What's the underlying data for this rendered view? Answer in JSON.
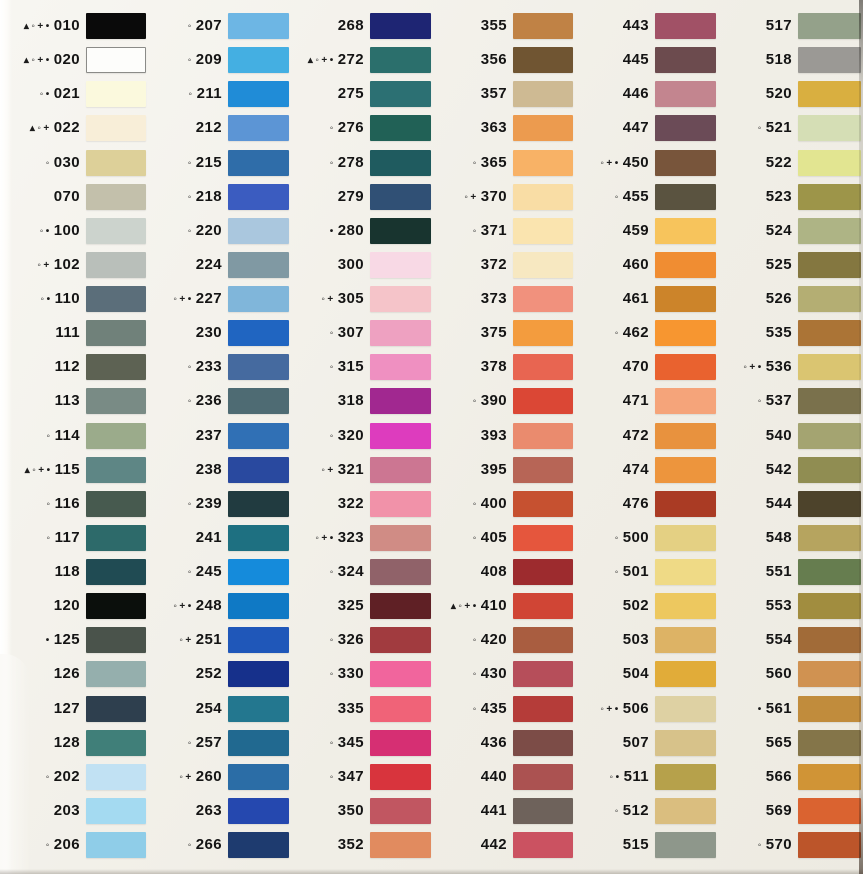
{
  "page": {
    "background": "#f3f1ea",
    "description": "Thread colour card with numbered swatches",
    "symbol_legend_chars": [
      "▴",
      "◦",
      "+",
      "•"
    ]
  },
  "columns": [
    {
      "items": [
        {
          "code": "010",
          "symbols": "▴◦+•",
          "color": "#0a0a0a"
        },
        {
          "code": "020",
          "symbols": "▴◦+•",
          "color": "#fdfdfb",
          "border": true
        },
        {
          "code": "021",
          "symbols": "◦•",
          "color": "#fbf9dd"
        },
        {
          "code": "022",
          "symbols": "▴◦+",
          "color": "#f8eed8"
        },
        {
          "code": "030",
          "symbols": "◦",
          "color": "#ddd099"
        },
        {
          "code": "070",
          "symbols": "",
          "color": "#c3c0ab"
        },
        {
          "code": "100",
          "symbols": "◦•",
          "color": "#ccd3cd"
        },
        {
          "code": "102",
          "symbols": "◦+",
          "color": "#b9bfba"
        },
        {
          "code": "110",
          "symbols": "◦•",
          "color": "#5b6e7a"
        },
        {
          "code": "111",
          "symbols": "",
          "color": "#70817a"
        },
        {
          "code": "112",
          "symbols": "",
          "color": "#5d6253"
        },
        {
          "code": "113",
          "symbols": "",
          "color": "#798b85"
        },
        {
          "code": "114",
          "symbols": "◦",
          "color": "#9bab8b"
        },
        {
          "code": "115",
          "symbols": "▴◦+•",
          "color": "#5e8685"
        },
        {
          "code": "116",
          "symbols": "◦",
          "color": "#475a4f"
        },
        {
          "code": "117",
          "symbols": "◦",
          "color": "#2d6a6a"
        },
        {
          "code": "118",
          "symbols": "",
          "color": "#204b53"
        },
        {
          "code": "120",
          "symbols": "",
          "color": "#0b0f0c"
        },
        {
          "code": "125",
          "symbols": "•",
          "color": "#4a534b"
        },
        {
          "code": "126",
          "symbols": "",
          "color": "#95afad"
        },
        {
          "code": "127",
          "symbols": "",
          "color": "#2e3f4e"
        },
        {
          "code": "128",
          "symbols": "",
          "color": "#407f79"
        },
        {
          "code": "202",
          "symbols": "◦",
          "color": "#c1e1f3"
        },
        {
          "code": "203",
          "symbols": "",
          "color": "#a4daf1"
        },
        {
          "code": "206",
          "symbols": "◦",
          "color": "#8fcde8"
        }
      ]
    },
    {
      "items": [
        {
          "code": "207",
          "symbols": "◦",
          "color": "#6db6e4"
        },
        {
          "code": "209",
          "symbols": "◦",
          "color": "#44afe2"
        },
        {
          "code": "211",
          "symbols": "◦",
          "color": "#208cd7"
        },
        {
          "code": "212",
          "symbols": "",
          "color": "#5c95d5"
        },
        {
          "code": "215",
          "symbols": "◦",
          "color": "#2f6da9"
        },
        {
          "code": "218",
          "symbols": "◦",
          "color": "#3b5cc0"
        },
        {
          "code": "220",
          "symbols": "◦",
          "color": "#aac7de"
        },
        {
          "code": "224",
          "symbols": "",
          "color": "#8099a3"
        },
        {
          "code": "227",
          "symbols": "◦+•",
          "color": "#80b6da"
        },
        {
          "code": "230",
          "symbols": "",
          "color": "#2065c1"
        },
        {
          "code": "233",
          "symbols": "◦",
          "color": "#456a9f"
        },
        {
          "code": "236",
          "symbols": "◦",
          "color": "#4e6b73"
        },
        {
          "code": "237",
          "symbols": "",
          "color": "#3070b5"
        },
        {
          "code": "238",
          "symbols": "",
          "color": "#29499f"
        },
        {
          "code": "239",
          "symbols": "◦",
          "color": "#213b40"
        },
        {
          "code": "241",
          "symbols": "",
          "color": "#1e7081"
        },
        {
          "code": "245",
          "symbols": "◦",
          "color": "#158bdb"
        },
        {
          "code": "248",
          "symbols": "◦+•",
          "color": "#0f79c5"
        },
        {
          "code": "251",
          "symbols": "◦+",
          "color": "#1f57b9"
        },
        {
          "code": "252",
          "symbols": "",
          "color": "#16308b"
        },
        {
          "code": "254",
          "symbols": "",
          "color": "#23778f"
        },
        {
          "code": "257",
          "symbols": "◦",
          "color": "#216990"
        },
        {
          "code": "260",
          "symbols": "◦+",
          "color": "#2b6da6"
        },
        {
          "code": "263",
          "symbols": "",
          "color": "#2548af"
        },
        {
          "code": "266",
          "symbols": "◦",
          "color": "#1e3b6f"
        }
      ]
    },
    {
      "items": [
        {
          "code": "268",
          "symbols": "",
          "color": "#1e2573"
        },
        {
          "code": "272",
          "symbols": "▴◦+•",
          "color": "#2b6f6c"
        },
        {
          "code": "275",
          "symbols": "",
          "color": "#2c7073"
        },
        {
          "code": "276",
          "symbols": "◦",
          "color": "#216156"
        },
        {
          "code": "278",
          "symbols": "◦",
          "color": "#1f5b5f"
        },
        {
          "code": "279",
          "symbols": "",
          "color": "#305075"
        },
        {
          "code": "280",
          "symbols": "•",
          "color": "#18342f"
        },
        {
          "code": "300",
          "symbols": "",
          "color": "#f8d9e5"
        },
        {
          "code": "305",
          "symbols": "◦+",
          "color": "#f5c4c9"
        },
        {
          "code": "307",
          "symbols": "◦",
          "color": "#eea1c1"
        },
        {
          "code": "315",
          "symbols": "◦",
          "color": "#ef90c1"
        },
        {
          "code": "318",
          "symbols": "",
          "color": "#a12890"
        },
        {
          "code": "320",
          "symbols": "◦",
          "color": "#dd3cbe"
        },
        {
          "code": "321",
          "symbols": "◦+",
          "color": "#cc7692"
        },
        {
          "code": "322",
          "symbols": "",
          "color": "#f192a9"
        },
        {
          "code": "323",
          "symbols": "◦+•",
          "color": "#d08c85"
        },
        {
          "code": "324",
          "symbols": "◦",
          "color": "#906269"
        },
        {
          "code": "325",
          "symbols": "",
          "color": "#5f2025"
        },
        {
          "code": "326",
          "symbols": "◦",
          "color": "#a13b3f"
        },
        {
          "code": "330",
          "symbols": "◦",
          "color": "#f1659d"
        },
        {
          "code": "335",
          "symbols": "",
          "color": "#f06378"
        },
        {
          "code": "345",
          "symbols": "◦",
          "color": "#d62f73"
        },
        {
          "code": "347",
          "symbols": "◦",
          "color": "#d8343d"
        },
        {
          "code": "350",
          "symbols": "",
          "color": "#c15661"
        },
        {
          "code": "352",
          "symbols": "",
          "color": "#e18b5f"
        }
      ]
    },
    {
      "items": [
        {
          "code": "355",
          "symbols": "",
          "color": "#c08245"
        },
        {
          "code": "356",
          "symbols": "",
          "color": "#705532"
        },
        {
          "code": "357",
          "symbols": "",
          "color": "#ceba93"
        },
        {
          "code": "363",
          "symbols": "",
          "color": "#ec9b4f"
        },
        {
          "code": "365",
          "symbols": "◦",
          "color": "#f8b266"
        },
        {
          "code": "370",
          "symbols": "◦+",
          "color": "#f9dda5"
        },
        {
          "code": "371",
          "symbols": "◦",
          "color": "#fae4af"
        },
        {
          "code": "372",
          "symbols": "",
          "color": "#f7e8c1"
        },
        {
          "code": "373",
          "symbols": "",
          "color": "#f1917d"
        },
        {
          "code": "375",
          "symbols": "",
          "color": "#f39c3e"
        },
        {
          "code": "378",
          "symbols": "",
          "color": "#e86551"
        },
        {
          "code": "390",
          "symbols": "◦",
          "color": "#db4735"
        },
        {
          "code": "393",
          "symbols": "",
          "color": "#ea8b6e"
        },
        {
          "code": "395",
          "symbols": "",
          "color": "#b76556"
        },
        {
          "code": "400",
          "symbols": "◦",
          "color": "#c65130"
        },
        {
          "code": "405",
          "symbols": "◦",
          "color": "#e5563d"
        },
        {
          "code": "408",
          "symbols": "",
          "color": "#9d2b2e"
        },
        {
          "code": "410",
          "symbols": "▴◦+•",
          "color": "#d04535"
        },
        {
          "code": "420",
          "symbols": "◦",
          "color": "#a95d40"
        },
        {
          "code": "430",
          "symbols": "◦",
          "color": "#b64e5a"
        },
        {
          "code": "435",
          "symbols": "◦",
          "color": "#b53c39"
        },
        {
          "code": "436",
          "symbols": "",
          "color": "#7c4c47"
        },
        {
          "code": "440",
          "symbols": "",
          "color": "#ab5251"
        },
        {
          "code": "441",
          "symbols": "",
          "color": "#6e625b"
        },
        {
          "code": "442",
          "symbols": "",
          "color": "#cb5261"
        }
      ]
    },
    {
      "items": [
        {
          "code": "443",
          "symbols": "",
          "color": "#a15166"
        },
        {
          "code": "445",
          "symbols": "",
          "color": "#6c4b4e"
        },
        {
          "code": "446",
          "symbols": "",
          "color": "#c3858f"
        },
        {
          "code": "447",
          "symbols": "",
          "color": "#6b4b57"
        },
        {
          "code": "450",
          "symbols": "◦+•",
          "color": "#78553b"
        },
        {
          "code": "455",
          "symbols": "◦",
          "color": "#5a5340"
        },
        {
          "code": "459",
          "symbols": "",
          "color": "#f7c45c"
        },
        {
          "code": "460",
          "symbols": "",
          "color": "#f08d32"
        },
        {
          "code": "461",
          "symbols": "",
          "color": "#cc842a"
        },
        {
          "code": "462",
          "symbols": "◦",
          "color": "#f79630"
        },
        {
          "code": "470",
          "symbols": "",
          "color": "#e9622f"
        },
        {
          "code": "471",
          "symbols": "",
          "color": "#f5a47a"
        },
        {
          "code": "472",
          "symbols": "",
          "color": "#e8923e"
        },
        {
          "code": "474",
          "symbols": "",
          "color": "#ed953d"
        },
        {
          "code": "476",
          "symbols": "",
          "color": "#aa3b24"
        },
        {
          "code": "500",
          "symbols": "◦",
          "color": "#e4d083"
        },
        {
          "code": "501",
          "symbols": "◦",
          "color": "#efda86"
        },
        {
          "code": "502",
          "symbols": "",
          "color": "#edc85f"
        },
        {
          "code": "503",
          "symbols": "",
          "color": "#ddb365"
        },
        {
          "code": "504",
          "symbols": "",
          "color": "#e1ac39"
        },
        {
          "code": "506",
          "symbols": "◦+•",
          "color": "#ded1a3"
        },
        {
          "code": "507",
          "symbols": "",
          "color": "#d7c28a"
        },
        {
          "code": "511",
          "symbols": "◦•",
          "color": "#b6a14b"
        },
        {
          "code": "512",
          "symbols": "◦",
          "color": "#dabe7f"
        },
        {
          "code": "515",
          "symbols": "",
          "color": "#8e978b"
        }
      ]
    },
    {
      "items": [
        {
          "code": "517",
          "symbols": "",
          "color": "#94a18a"
        },
        {
          "code": "518",
          "symbols": "",
          "color": "#9b9995"
        },
        {
          "code": "520",
          "symbols": "",
          "color": "#d9af40"
        },
        {
          "code": "521",
          "symbols": "◦",
          "color": "#d5deb5"
        },
        {
          "code": "522",
          "symbols": "",
          "color": "#e2e591"
        },
        {
          "code": "523",
          "symbols": "",
          "color": "#9d9549"
        },
        {
          "code": "524",
          "symbols": "",
          "color": "#aeb485"
        },
        {
          "code": "525",
          "symbols": "",
          "color": "#847740"
        },
        {
          "code": "526",
          "symbols": "",
          "color": "#b4ae73"
        },
        {
          "code": "535",
          "symbols": "",
          "color": "#ab7436"
        },
        {
          "code": "536",
          "symbols": "◦+•",
          "color": "#dac571"
        },
        {
          "code": "537",
          "symbols": "◦",
          "color": "#7a714c"
        },
        {
          "code": "540",
          "symbols": "",
          "color": "#a4a471"
        },
        {
          "code": "542",
          "symbols": "",
          "color": "#908d52"
        },
        {
          "code": "544",
          "symbols": "",
          "color": "#4d432b"
        },
        {
          "code": "548",
          "symbols": "",
          "color": "#b6a45f"
        },
        {
          "code": "551",
          "symbols": "",
          "color": "#667d4f"
        },
        {
          "code": "553",
          "symbols": "",
          "color": "#a18d3f"
        },
        {
          "code": "554",
          "symbols": "",
          "color": "#a16b38"
        },
        {
          "code": "560",
          "symbols": "",
          "color": "#d09251"
        },
        {
          "code": "561",
          "symbols": "•",
          "color": "#c18c3c"
        },
        {
          "code": "565",
          "symbols": "",
          "color": "#847549"
        },
        {
          "code": "566",
          "symbols": "",
          "color": "#d09436"
        },
        {
          "code": "569",
          "symbols": "",
          "color": "#da6330"
        },
        {
          "code": "570",
          "symbols": "◦",
          "color": "#bc552a"
        }
      ]
    }
  ]
}
